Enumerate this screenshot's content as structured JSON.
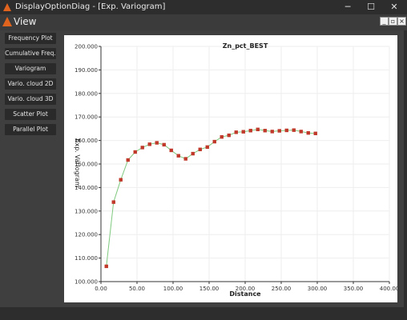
{
  "window": {
    "title": "DisplayOptionDiag - [Exp. Variogram]",
    "minimize_glyph": "─",
    "maximize_glyph": "☐",
    "close_glyph": "✕"
  },
  "view": {
    "title": "View",
    "mdi_minimize": "_",
    "mdi_restore": "▫",
    "mdi_close": "×"
  },
  "sidebar": {
    "items": [
      {
        "label": "Frequency Plot"
      },
      {
        "label": "Cumulative Freq."
      },
      {
        "label": "Variogram"
      },
      {
        "label": "Vario. cloud 2D"
      },
      {
        "label": "Vario. cloud 3D"
      },
      {
        "label": "Scatter Plot"
      },
      {
        "label": "Parallel Plot"
      }
    ]
  },
  "colors": {
    "accent_orange": "#e0641e",
    "point_red": "#c0392b",
    "line_green": "#7fc97f"
  },
  "chart_data": {
    "type": "line",
    "title": "Zn_pct_BEST",
    "xlabel": "Distance",
    "ylabel": "Exp. Variogram",
    "xlim": [
      0,
      400
    ],
    "ylim": [
      100,
      200
    ],
    "xticks": [
      "0.00",
      "50.00",
      "100.00",
      "150.00",
      "200.00",
      "250.00",
      "300.00",
      "350.00",
      "400.00"
    ],
    "yticks": [
      "100.000",
      "110.000",
      "120.000",
      "130.000",
      "140.000",
      "150.000",
      "160.000",
      "170.000",
      "180.000",
      "190.000",
      "200.000"
    ],
    "grid": true,
    "series": [
      {
        "x": [
          7.5,
          17.5,
          27.5,
          37.5,
          47.5,
          57.5,
          67.5,
          77.5,
          87.5,
          97.5,
          107.5,
          117.5,
          127.5,
          137.5,
          147.5,
          157.5,
          167.5,
          177.5,
          187.5,
          197.5,
          207.5,
          217.5,
          227.5,
          237.5,
          247.5,
          257.5,
          267.5,
          277.5,
          287.5,
          297.5
        ],
        "y": [
          106.5,
          133.8,
          143.3,
          151.7,
          155.1,
          157.0,
          158.4,
          159.0,
          158.2,
          155.8,
          153.5,
          152.2,
          154.4,
          156.2,
          157.2,
          159.5,
          161.5,
          162.2,
          163.5,
          163.7,
          164.2,
          164.7,
          164.2,
          163.8,
          164.1,
          164.3,
          164.4,
          163.8,
          163.2,
          163.0
        ]
      }
    ]
  }
}
